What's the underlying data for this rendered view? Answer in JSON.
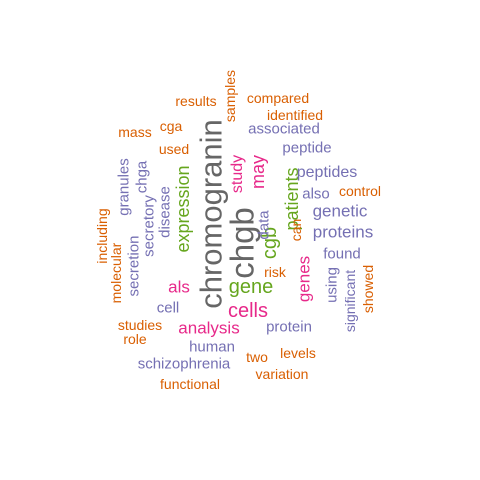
{
  "colors": {
    "gray": "#666666",
    "magenta": "#e7298a",
    "green": "#66a61e",
    "purple": "#7570b3",
    "orange": "#d95f02"
  },
  "words": [
    {
      "text": "chromogranin",
      "color": "gray"
    },
    {
      "text": "chgb",
      "color": "gray"
    },
    {
      "text": "cells",
      "color": "magenta"
    },
    {
      "text": "gene",
      "color": "green"
    },
    {
      "text": "analysis",
      "color": "magenta"
    },
    {
      "text": "genes",
      "color": "magenta"
    },
    {
      "text": "cgb",
      "color": "green"
    },
    {
      "text": "expression",
      "color": "green"
    },
    {
      "text": "patients",
      "color": "green"
    },
    {
      "text": "may",
      "color": "magenta"
    },
    {
      "text": "study",
      "color": "magenta"
    },
    {
      "text": "als",
      "color": "magenta"
    },
    {
      "text": "proteins",
      "color": "purple"
    },
    {
      "text": "genetic",
      "color": "purple"
    },
    {
      "text": "peptides",
      "color": "purple"
    },
    {
      "text": "associated",
      "color": "purple"
    },
    {
      "text": "peptide",
      "color": "purple"
    },
    {
      "text": "protein",
      "color": "purple"
    },
    {
      "text": "human",
      "color": "purple"
    },
    {
      "text": "schizophrenia",
      "color": "purple"
    },
    {
      "text": "disease",
      "color": "purple"
    },
    {
      "text": "secretory",
      "color": "purple"
    },
    {
      "text": "chga",
      "color": "purple"
    },
    {
      "text": "secretion",
      "color": "purple"
    },
    {
      "text": "granules",
      "color": "purple"
    },
    {
      "text": "cell",
      "color": "purple"
    },
    {
      "text": "data",
      "color": "purple"
    },
    {
      "text": "also",
      "color": "purple"
    },
    {
      "text": "found",
      "color": "purple"
    },
    {
      "text": "using",
      "color": "purple"
    },
    {
      "text": "significant",
      "color": "purple"
    },
    {
      "text": "results",
      "color": "orange"
    },
    {
      "text": "samples",
      "color": "orange"
    },
    {
      "text": "compared",
      "color": "orange"
    },
    {
      "text": "identified",
      "color": "orange"
    },
    {
      "text": "mass",
      "color": "orange"
    },
    {
      "text": "cga",
      "color": "orange"
    },
    {
      "text": "used",
      "color": "orange"
    },
    {
      "text": "control",
      "color": "orange"
    },
    {
      "text": "can",
      "color": "orange"
    },
    {
      "text": "risk",
      "color": "orange"
    },
    {
      "text": "showed",
      "color": "orange"
    },
    {
      "text": "including",
      "color": "orange"
    },
    {
      "text": "molecular",
      "color": "orange"
    },
    {
      "text": "studies",
      "color": "orange"
    },
    {
      "text": "role",
      "color": "orange"
    },
    {
      "text": "two",
      "color": "orange"
    },
    {
      "text": "levels",
      "color": "orange"
    },
    {
      "text": "variation",
      "color": "orange"
    },
    {
      "text": "functional",
      "color": "orange"
    }
  ]
}
